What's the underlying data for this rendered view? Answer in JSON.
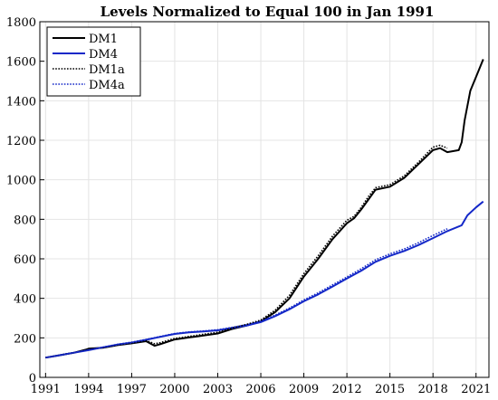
{
  "chart_data": {
    "type": "line",
    "title": "Levels Normalized to Equal 100 in Jan 1991",
    "xlabel": "",
    "ylabel": "",
    "xlim": [
      1990.6,
      2021.9
    ],
    "ylim": [
      0,
      1800
    ],
    "xticks": [
      1991,
      1994,
      1997,
      2000,
      2003,
      2006,
      2009,
      2012,
      2015,
      2018,
      2021
    ],
    "yticks": [
      0,
      200,
      400,
      600,
      800,
      1000,
      1200,
      1400,
      1600,
      1800
    ],
    "grid": true,
    "legend_position": "top-left",
    "series": [
      {
        "name": "DM1",
        "style": "solid",
        "color": "#000000",
        "x": [
          1991,
          1992,
          1993,
          1993.8,
          1994.0,
          1995,
          1996,
          1997,
          1998,
          1998.6,
          1999,
          2000,
          2001,
          2002,
          2003,
          2004,
          2005,
          2006,
          2007,
          2008,
          2009,
          2010,
          2011,
          2012,
          2012.5,
          2013,
          2013.5,
          2014,
          2015,
          2016,
          2017,
          2018,
          2018.5,
          2019,
          2019.8,
          2020.0,
          2020.2,
          2020.6,
          2021,
          2021.5
        ],
        "y": [
          100,
          112,
          125,
          140,
          145,
          150,
          163,
          172,
          183,
          160,
          168,
          192,
          202,
          212,
          222,
          245,
          262,
          283,
          330,
          400,
          510,
          600,
          700,
          780,
          805,
          850,
          900,
          950,
          965,
          1010,
          1080,
          1150,
          1160,
          1140,
          1150,
          1190,
          1300,
          1450,
          1520,
          1610
        ]
      },
      {
        "name": "DM4",
        "style": "solid",
        "color": "#1428c8",
        "x": [
          1991,
          1992,
          1993,
          1994,
          1995,
          1996,
          1997,
          1998,
          1999,
          2000,
          2001,
          2002,
          2003,
          2004,
          2005,
          2006,
          2007,
          2008,
          2009,
          2010,
          2011,
          2012,
          2013,
          2014,
          2015,
          2016,
          2017,
          2018,
          2019,
          2020,
          2020.4,
          2021,
          2021.5
        ],
        "y": [
          100,
          112,
          125,
          138,
          152,
          166,
          176,
          190,
          205,
          220,
          228,
          232,
          238,
          250,
          262,
          280,
          310,
          345,
          385,
          420,
          460,
          500,
          540,
          585,
          615,
          640,
          670,
          705,
          740,
          770,
          820,
          860,
          890
        ]
      },
      {
        "name": "DM1a",
        "style": "dotted",
        "color": "#000000",
        "x": [
          1991,
          1992,
          1993,
          1994,
          1995,
          1996,
          1997,
          1998,
          1998.6,
          1999,
          2000,
          2001,
          2002,
          2003,
          2004,
          2005,
          2006,
          2007,
          2008,
          2009,
          2010,
          2011,
          2012,
          2012.5,
          2013,
          2013.5,
          2014,
          2015,
          2016,
          2017,
          2018,
          2018.5,
          2019
        ],
        "y": [
          100,
          113,
          126,
          141,
          151,
          165,
          175,
          187,
          170,
          176,
          197,
          207,
          218,
          228,
          250,
          268,
          290,
          340,
          415,
          525,
          615,
          715,
          795,
          815,
          860,
          915,
          960,
          975,
          1020,
          1090,
          1165,
          1175,
          1160
        ]
      },
      {
        "name": "DM4a",
        "style": "dotted",
        "color": "#1428c8",
        "x": [
          1991,
          1992,
          1993,
          1994,
          1995,
          1996,
          1997,
          1998,
          1999,
          2000,
          2001,
          2002,
          2003,
          2004,
          2005,
          2006,
          2007,
          2008,
          2009,
          2010,
          2011,
          2012,
          2013,
          2014,
          2015,
          2016,
          2017,
          2018,
          2019
        ],
        "y": [
          100,
          113,
          126,
          139,
          153,
          167,
          178,
          192,
          207,
          222,
          230,
          235,
          241,
          253,
          266,
          284,
          315,
          351,
          392,
          428,
          468,
          508,
          550,
          595,
          625,
          650,
          682,
          718,
          752
        ]
      }
    ]
  }
}
